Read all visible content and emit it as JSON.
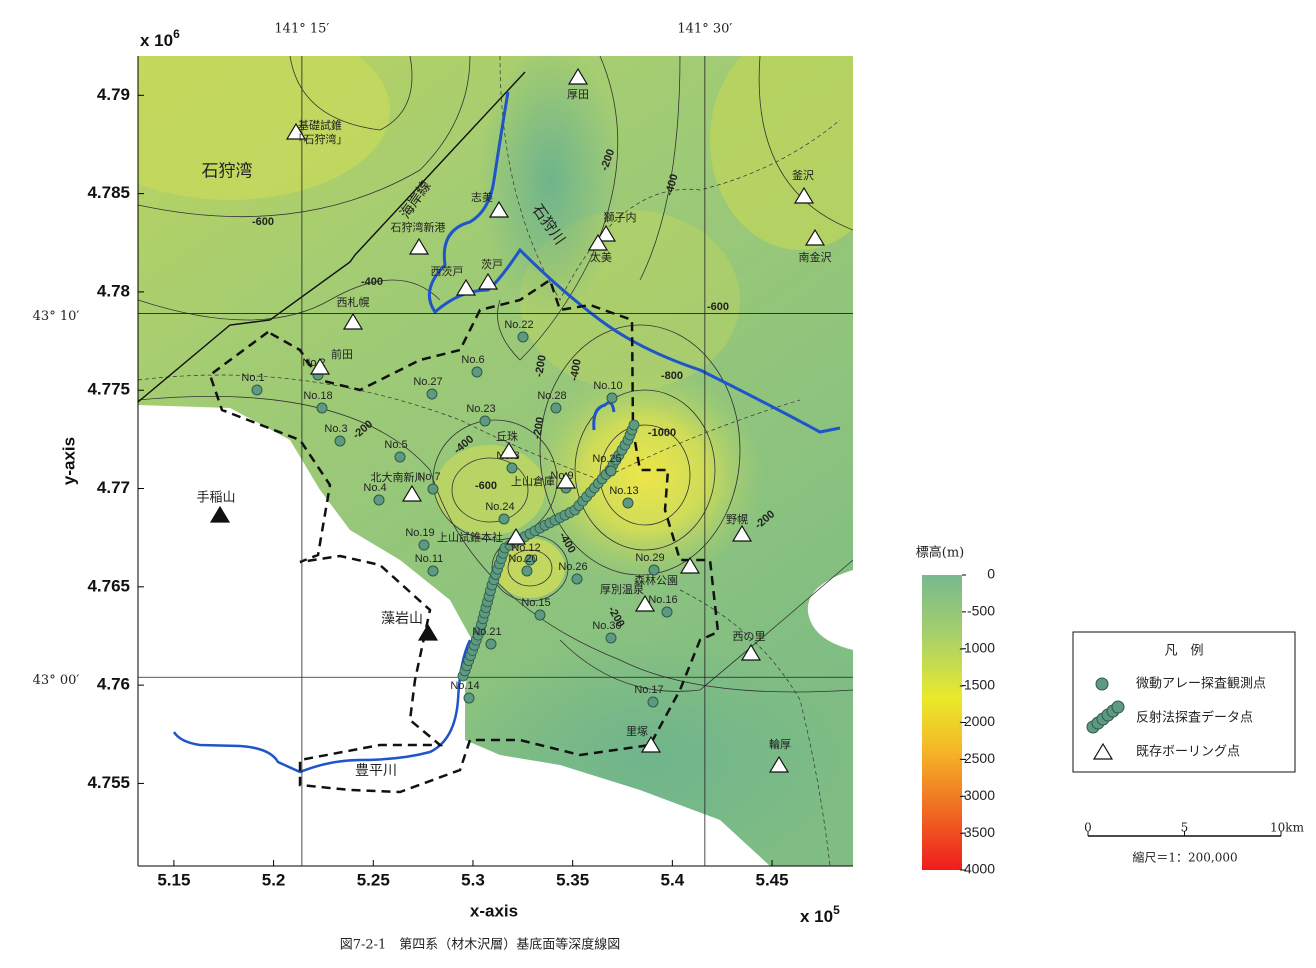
{
  "chart_data": {
    "type": "contour",
    "xlabel": "x-axis",
    "ylabel": "y-axis",
    "x_multiplier": "x 10",
    "x_exponent": "5",
    "y_multiplier": "x 10",
    "y_exponent": "6",
    "xlim": [
      5.132,
      5.4906
    ],
    "ylim": [
      4.7508,
      4.792
    ],
    "xticks": [
      5.15,
      5.2,
      5.25,
      5.3,
      5.35,
      5.4,
      5.45
    ],
    "yticks": [
      4.755,
      4.76,
      4.765,
      4.77,
      4.775,
      4.78,
      4.785,
      4.79
    ],
    "longitude_lines": [
      {
        "value": 5.2142,
        "label": "141° 15′"
      },
      {
        "value": 5.4163,
        "label": "141° 30′"
      }
    ],
    "latitude_lines": [
      {
        "value": 4.7789,
        "label": "43° 10′"
      },
      {
        "value": 4.7604,
        "label": "43° 00′"
      }
    ],
    "colorbar": {
      "title": "標高(m)",
      "clim": [
        -4000,
        0
      ],
      "ticks": [
        0,
        -500,
        -1000,
        -1500,
        -2000,
        -2500,
        -3000,
        -3500,
        -4000
      ]
    },
    "contour_labels": [
      -200,
      -400,
      -600,
      -400,
      -600,
      -800,
      -1000,
      -200,
      -400,
      -200,
      -400,
      -600,
      -200,
      -400,
      -200,
      -200
    ],
    "stations": [
      "No.1",
      "No.2",
      "No.18",
      "No.3",
      "No.5",
      "No.4",
      "No.7",
      "No.19",
      "No.11",
      "No.27",
      "No.6",
      "No.22",
      "No.23",
      "No.28",
      "No.8",
      "No.9",
      "No.24",
      "No.12",
      "No.20",
      "No.15",
      "No.21",
      "No.26",
      "No.10",
      "No.25",
      "No.13",
      "No.29",
      "No.16",
      "No.30",
      "No.17",
      "No.14"
    ],
    "boreholes": [
      "厚田",
      "基礎試錐",
      "「石狩湾」",
      "志美",
      "獅子内",
      "太美",
      "石狩湾新港",
      "西茨戸",
      "茨戸",
      "西札幌",
      "前田",
      "丘珠",
      "北大南新川",
      "上山倉庫",
      "上山試錐本社",
      "森林公園",
      "厚別温泉",
      "野幌",
      "西の里",
      "里塚",
      "輪厚",
      "釜沢",
      "南金沢"
    ],
    "place_names": [
      "石狩湾",
      "海岸線",
      "石狩川",
      "手稲山",
      "藻岩山",
      "豊平川"
    ],
    "legend": {
      "title": "凡　例",
      "items": [
        "微動アレー探査観測点",
        "反射法探査データ点",
        "既存ボーリング点"
      ]
    },
    "scale": {
      "ticks": [
        0,
        5,
        {
          "value": 10,
          "label": "10km"
        }
      ],
      "text": "縮尺＝1：200,000"
    },
    "caption": "図7-2-1　第四系（材木沢層）基底面等深度線図"
  }
}
